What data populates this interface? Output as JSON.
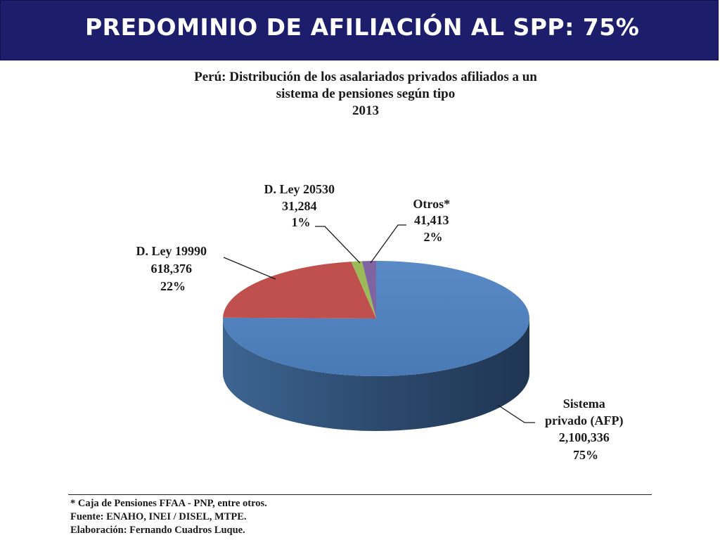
{
  "header": {
    "title": "PREDOMINIO DE AFILIACIÓN AL SPP: 75%"
  },
  "chart_data": {
    "type": "pie",
    "title": [
      "Perú: Distribución  de los asalariados privados afiliados a un",
      "sistema de pensiones  según tipo",
      "2013"
    ],
    "slices": [
      {
        "name_lines": [
          "Sistema",
          "privado (AFP)"
        ],
        "value": 2100336,
        "value_label": "2,100,336",
        "percent": 75,
        "percent_label": "75%",
        "color": "#4f81bd"
      },
      {
        "name_lines": [
          "D. Ley 19990"
        ],
        "value": 618376,
        "value_label": "618,376",
        "percent": 22,
        "percent_label": "22%",
        "color": "#c0504d"
      },
      {
        "name_lines": [
          "D. Ley 20530"
        ],
        "value": 31284,
        "value_label": "31,284",
        "percent": 1,
        "percent_label": "1%",
        "color": "#9bbb59"
      },
      {
        "name_lines": [
          "Otros*"
        ],
        "value": 41413,
        "value_label": "41,413",
        "percent": 2,
        "percent_label": "2%",
        "color": "#8064a2"
      }
    ],
    "style": "3d"
  },
  "footnotes": [
    "* Caja de Pensiones FFAA - PNP, entre otros.",
    "Fuente: ENAHO, INEI / DISEL, MTPE.",
    "Elaboración: Fernando Cuadros Luque."
  ]
}
